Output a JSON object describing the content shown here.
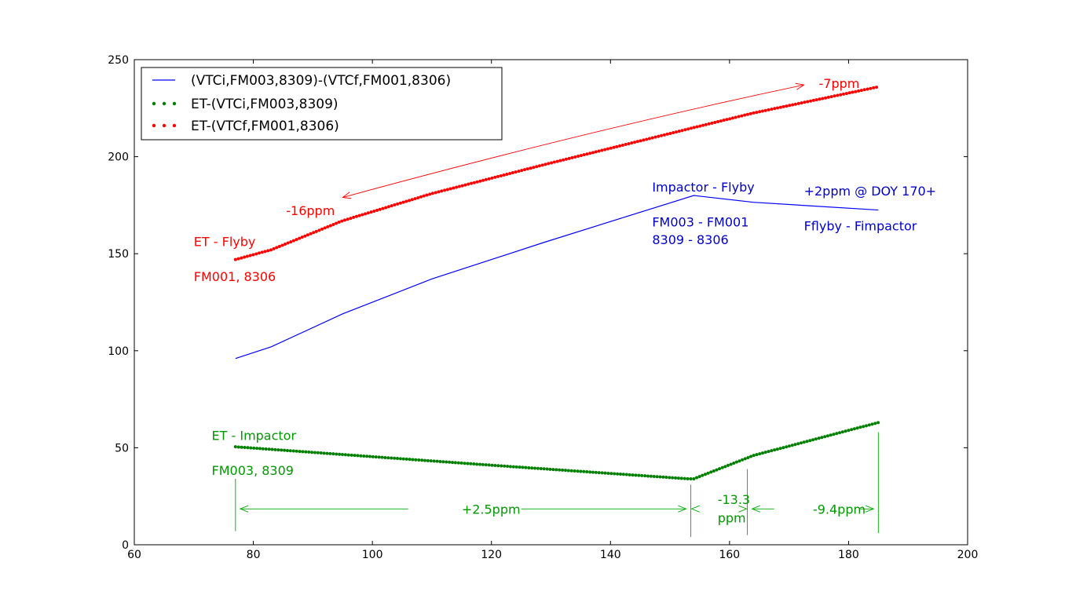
{
  "chart_data": {
    "type": "line",
    "title": "",
    "xlabel": "",
    "ylabel": "",
    "xlim": [
      60,
      200
    ],
    "ylim": [
      0,
      250
    ],
    "x_ticks": [
      60,
      80,
      100,
      120,
      140,
      160,
      180,
      200
    ],
    "y_ticks": [
      0,
      50,
      100,
      150,
      200,
      250
    ],
    "grid": false,
    "legend_position": "top-left",
    "series": [
      {
        "name": "(VTCi,FM003,8309)-(VTCf,FM001,8306)",
        "style": "solid",
        "color": "#0000ff",
        "x": [
          77,
          83,
          95,
          110,
          129,
          154,
          164,
          185
        ],
        "y": [
          96,
          102,
          119,
          137,
          156,
          180,
          176.5,
          172.5
        ]
      },
      {
        "name": "ET-(VTCi,FM003,8309)",
        "style": "dotted",
        "color": "#008000",
        "x": [
          77,
          95,
          120,
          153,
          154,
          164,
          185
        ],
        "y": [
          50.5,
          46.5,
          41,
          34,
          34,
          46,
          63
        ]
      },
      {
        "name": "ET-(VTCf,FM001,8306)",
        "style": "dotted",
        "color": "#ff0000",
        "x": [
          77,
          83,
          95,
          110,
          129,
          154,
          164,
          185
        ],
        "y": [
          147,
          152,
          167,
          181,
          196,
          215,
          222.5,
          236
        ]
      }
    ],
    "annotations": [
      {
        "id": "red-flyby-title",
        "text": "ET - Flyby",
        "x": 70,
        "y": 154,
        "color": "#ff0000"
      },
      {
        "id": "red-flyby-sub",
        "text": "FM001, 8306",
        "x": 70,
        "y": 136,
        "color": "#ff0000"
      },
      {
        "id": "red-16ppm",
        "text": "-16ppm",
        "x": 85.5,
        "y": 170,
        "color": "#ff0000"
      },
      {
        "id": "red-7ppm",
        "text": "-7ppm",
        "x": 175,
        "y": 235.5,
        "color": "#ff0000"
      },
      {
        "id": "blue-impactor-flyby",
        "text": "Impactor - Flyby",
        "x": 147,
        "y": 182,
        "color": "#0000cc"
      },
      {
        "id": "blue-fm",
        "text": "FM003 - FM001",
        "x": 147,
        "y": 164,
        "color": "#0000cc"
      },
      {
        "id": "blue-8309",
        "text": "8309 - 8306",
        "x": 147,
        "y": 155,
        "color": "#0000cc"
      },
      {
        "id": "blue-2ppm",
        "text": "+2ppm @ DOY 170+",
        "x": 172.5,
        "y": 180,
        "color": "#0000cc"
      },
      {
        "id": "blue-fflyby",
        "text": "Fflyby - Fimpactor",
        "x": 172.5,
        "y": 162,
        "color": "#0000cc"
      },
      {
        "id": "green-et-impactor",
        "text": "ET - Impactor",
        "x": 73,
        "y": 54,
        "color": "#009900"
      },
      {
        "id": "green-fm003",
        "text": "FM003, 8309",
        "x": 73,
        "y": 36,
        "color": "#009900"
      },
      {
        "id": "green-2-5ppm",
        "text": "+2.5ppm",
        "x": 115,
        "y": 16,
        "color": "#009900"
      },
      {
        "id": "green-13-3a",
        "text": "-13.3",
        "x": 158,
        "y": 21,
        "color": "#009900"
      },
      {
        "id": "green-13-3b",
        "text": "ppm",
        "x": 158,
        "y": 11.5,
        "color": "#009900"
      },
      {
        "id": "green-9-4ppm",
        "text": "-9.4ppm",
        "x": 174,
        "y": 16,
        "color": "#009900"
      }
    ],
    "red_arrow": {
      "from": [
        172.5,
        237
      ],
      "to": [
        95,
        179
      ],
      "color": "#ff0000"
    },
    "green_vlines": [
      {
        "x": 77,
        "y0": 7,
        "y1": 34
      },
      {
        "x": 153.5,
        "y0": 4,
        "y1": 31
      },
      {
        "x": 163,
        "y0": 5,
        "y1": 39
      },
      {
        "x": 185,
        "y0": 6,
        "y1": 58
      }
    ],
    "green_segments": [
      {
        "x0": 77,
        "x1": 153.5,
        "y": 18.5,
        "gap": [
          106,
          125
        ]
      },
      {
        "x0": 163,
        "x1": 185,
        "y": 18.5,
        "gap": [
          167.5,
          182
        ]
      }
    ]
  }
}
